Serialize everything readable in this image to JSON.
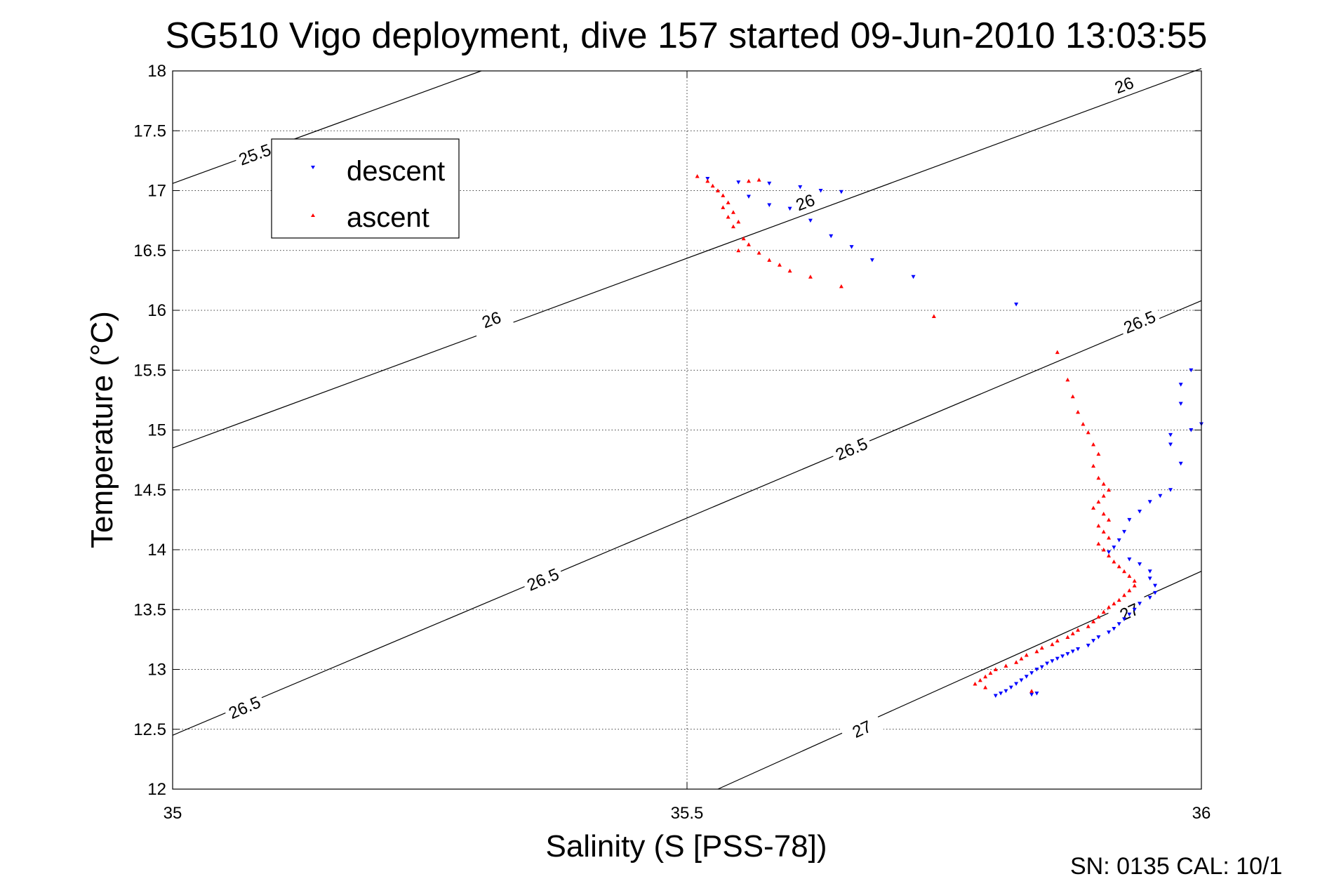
{
  "chart_data": {
    "type": "scatter",
    "title": "SG510 Vigo deployment, dive 157 started 09-Jun-2010 13:03:55",
    "xlabel": "Salinity (S [PSS-78])",
    "ylabel": "Temperature (°C)",
    "xlim": [
      35,
      36
    ],
    "ylim": [
      12,
      18
    ],
    "xticks": [
      35,
      35.5,
      36
    ],
    "xtick_labels": [
      "35",
      "35.5",
      "36"
    ],
    "yticks": [
      12,
      12.5,
      13,
      13.5,
      14,
      14.5,
      15,
      15.5,
      16,
      16.5,
      17,
      17.5,
      18
    ],
    "ytick_labels": [
      "12",
      "12.5",
      "13",
      "13.5",
      "14",
      "14.5",
      "15",
      "15.5",
      "16",
      "16.5",
      "17",
      "17.5",
      "18"
    ],
    "grid": true,
    "legend_position": "top-left",
    "footer": "SN: 0135  CAL: 10/1",
    "colors": {
      "descent": "#0000ff",
      "ascent": "#ff0000",
      "contour": "#000000"
    },
    "series": [
      {
        "name": "descent",
        "marker": "triangle-down",
        "points": [
          [
            35.52,
            17.1
          ],
          [
            35.55,
            17.07
          ],
          [
            35.58,
            17.06
          ],
          [
            35.61,
            17.03
          ],
          [
            35.63,
            17.0
          ],
          [
            35.65,
            16.99
          ],
          [
            35.56,
            16.95
          ],
          [
            35.58,
            16.88
          ],
          [
            35.6,
            16.85
          ],
          [
            35.62,
            16.75
          ],
          [
            35.64,
            16.62
          ],
          [
            35.66,
            16.53
          ],
          [
            35.68,
            16.42
          ],
          [
            35.72,
            16.28
          ],
          [
            35.82,
            16.05
          ],
          [
            35.99,
            15.5
          ],
          [
            35.98,
            15.38
          ],
          [
            35.98,
            15.22
          ],
          [
            36.0,
            15.05
          ],
          [
            35.99,
            15.0
          ],
          [
            35.97,
            14.96
          ],
          [
            35.97,
            14.88
          ],
          [
            35.98,
            14.72
          ],
          [
            35.97,
            14.5
          ],
          [
            35.96,
            14.45
          ],
          [
            35.95,
            14.4
          ],
          [
            35.94,
            14.32
          ],
          [
            35.93,
            14.25
          ],
          [
            35.925,
            14.15
          ],
          [
            35.92,
            14.08
          ],
          [
            35.915,
            14.02
          ],
          [
            35.91,
            13.98
          ],
          [
            35.93,
            13.92
          ],
          [
            35.94,
            13.88
          ],
          [
            35.95,
            13.82
          ],
          [
            35.95,
            13.76
          ],
          [
            35.955,
            13.7
          ],
          [
            35.955,
            13.64
          ],
          [
            35.95,
            13.6
          ],
          [
            35.94,
            13.55
          ],
          [
            35.935,
            13.5
          ],
          [
            35.93,
            13.46
          ],
          [
            35.925,
            13.42
          ],
          [
            35.92,
            13.38
          ],
          [
            35.915,
            13.34
          ],
          [
            35.91,
            13.31
          ],
          [
            35.9,
            13.27
          ],
          [
            35.895,
            13.24
          ],
          [
            35.89,
            13.2
          ],
          [
            35.88,
            13.17
          ],
          [
            35.875,
            13.15
          ],
          [
            35.87,
            13.13
          ],
          [
            35.865,
            13.11
          ],
          [
            35.86,
            13.09
          ],
          [
            35.855,
            13.07
          ],
          [
            35.85,
            13.05
          ],
          [
            35.845,
            13.02
          ],
          [
            35.84,
            13.0
          ],
          [
            35.835,
            12.97
          ],
          [
            35.83,
            12.94
          ],
          [
            35.825,
            12.91
          ],
          [
            35.82,
            12.88
          ],
          [
            35.815,
            12.85
          ],
          [
            35.81,
            12.82
          ],
          [
            35.805,
            12.8
          ],
          [
            35.8,
            12.78
          ],
          [
            35.835,
            12.79
          ],
          [
            35.84,
            12.8
          ]
        ]
      },
      {
        "name": "ascent",
        "marker": "triangle-up",
        "points": [
          [
            35.51,
            17.12
          ],
          [
            35.52,
            17.08
          ],
          [
            35.525,
            17.04
          ],
          [
            35.53,
            17.0
          ],
          [
            35.535,
            16.96
          ],
          [
            35.54,
            16.9
          ],
          [
            35.535,
            16.86
          ],
          [
            35.545,
            16.82
          ],
          [
            35.54,
            16.78
          ],
          [
            35.55,
            16.74
          ],
          [
            35.545,
            16.7
          ],
          [
            35.56,
            17.08
          ],
          [
            35.57,
            17.09
          ],
          [
            35.555,
            16.6
          ],
          [
            35.56,
            16.55
          ],
          [
            35.55,
            16.5
          ],
          [
            35.57,
            16.48
          ],
          [
            35.58,
            16.42
          ],
          [
            35.59,
            16.38
          ],
          [
            35.6,
            16.33
          ],
          [
            35.62,
            16.28
          ],
          [
            35.65,
            16.2
          ],
          [
            35.74,
            15.95
          ],
          [
            35.86,
            15.65
          ],
          [
            35.87,
            15.42
          ],
          [
            35.875,
            15.28
          ],
          [
            35.88,
            15.15
          ],
          [
            35.885,
            15.05
          ],
          [
            35.89,
            14.98
          ],
          [
            35.895,
            14.88
          ],
          [
            35.9,
            14.8
          ],
          [
            35.895,
            14.7
          ],
          [
            35.9,
            14.6
          ],
          [
            35.905,
            14.55
          ],
          [
            35.91,
            14.5
          ],
          [
            35.905,
            14.45
          ],
          [
            35.9,
            14.4
          ],
          [
            35.895,
            14.35
          ],
          [
            35.905,
            14.3
          ],
          [
            35.91,
            14.25
          ],
          [
            35.9,
            14.2
          ],
          [
            35.905,
            14.15
          ],
          [
            35.91,
            14.1
          ],
          [
            35.9,
            14.05
          ],
          [
            35.905,
            14.0
          ],
          [
            35.91,
            13.95
          ],
          [
            35.915,
            13.9
          ],
          [
            35.92,
            13.86
          ],
          [
            35.925,
            13.82
          ],
          [
            35.93,
            13.78
          ],
          [
            35.935,
            13.74
          ],
          [
            35.935,
            13.7
          ],
          [
            35.93,
            13.66
          ],
          [
            35.925,
            13.62
          ],
          [
            35.92,
            13.58
          ],
          [
            35.915,
            13.55
          ],
          [
            35.91,
            13.52
          ],
          [
            35.905,
            13.48
          ],
          [
            35.9,
            13.44
          ],
          [
            35.895,
            13.4
          ],
          [
            35.89,
            13.36
          ],
          [
            35.88,
            13.33
          ],
          [
            35.875,
            13.3
          ],
          [
            35.87,
            13.27
          ],
          [
            35.86,
            13.24
          ],
          [
            35.855,
            13.21
          ],
          [
            35.845,
            13.18
          ],
          [
            35.84,
            13.15
          ],
          [
            35.83,
            13.12
          ],
          [
            35.825,
            13.09
          ],
          [
            35.82,
            13.06
          ],
          [
            35.81,
            13.03
          ],
          [
            35.8,
            13.0
          ],
          [
            35.795,
            12.97
          ],
          [
            35.79,
            12.94
          ],
          [
            35.785,
            12.91
          ],
          [
            35.78,
            12.88
          ],
          [
            35.79,
            12.85
          ],
          [
            35.835,
            12.82
          ]
        ]
      }
    ],
    "contours": [
      {
        "label": "25.5",
        "points": [
          [
            35,
            17.06
          ],
          [
            35.3,
            18.0
          ]
        ],
        "label_positions": [
          [
            35.08,
            17.3
          ]
        ]
      },
      {
        "label": "26",
        "points": [
          [
            35,
            14.85
          ],
          [
            36,
            18.02
          ]
        ],
        "label_positions": [
          [
            35.31,
            15.92
          ],
          [
            35.615,
            16.9
          ],
          [
            35.925,
            17.88
          ]
        ]
      },
      {
        "label": "26.5",
        "points": [
          [
            35,
            12.45
          ],
          [
            36,
            16.08
          ]
        ],
        "label_positions": [
          [
            35.07,
            12.68
          ],
          [
            35.36,
            13.75
          ],
          [
            35.66,
            14.84
          ],
          [
            35.94,
            15.9
          ]
        ]
      },
      {
        "label": "27",
        "points": [
          [
            35.53,
            12.0
          ],
          [
            36,
            13.82
          ]
        ],
        "label_positions": [
          [
            35.67,
            12.5
          ],
          [
            35.93,
            13.48
          ]
        ]
      }
    ]
  }
}
